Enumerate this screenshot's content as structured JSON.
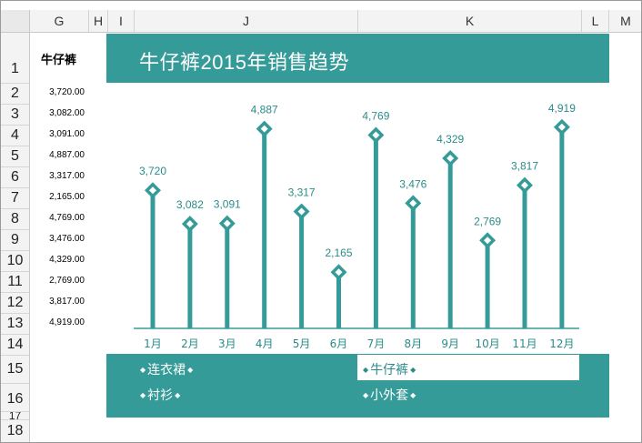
{
  "columns": [
    "G",
    "H",
    "I",
    "J",
    "K",
    "L",
    "M"
  ],
  "rows": [
    "1",
    "2",
    "3",
    "4",
    "5",
    "6",
    "7",
    "8",
    "9",
    "10",
    "11",
    "12",
    "13",
    "14",
    "15",
    "16",
    "17",
    "18"
  ],
  "g_header": "牛仔裤",
  "g_values": [
    "3,720.00",
    "3,082.00",
    "3,091.00",
    "4,887.00",
    "3,317.00",
    "2,165.00",
    "4,769.00",
    "3,476.00",
    "4,329.00",
    "2,769.00",
    "3,817.00",
    "4,919.00"
  ],
  "chart_title": "牛仔裤2015年销售趋势",
  "legend": {
    "items": [
      "连衣裙",
      "牛仔裤",
      "衬衫",
      "小外套"
    ],
    "diamond": "◆"
  },
  "colors": {
    "accent": "#359b98",
    "line": "#359b98",
    "label": "#2a8c8a"
  },
  "chart_data": {
    "type": "line",
    "title": "牛仔裤2015年销售趋势",
    "categories": [
      "1月",
      "2月",
      "3月",
      "4月",
      "5月",
      "6月",
      "7月",
      "8月",
      "9月",
      "10月",
      "11月",
      "12月"
    ],
    "values": [
      3720,
      3082,
      3091,
      4887,
      3317,
      2165,
      4769,
      3476,
      4329,
      2769,
      3817,
      4919
    ],
    "value_labels": [
      "3,720",
      "3,082",
      "3,091",
      "4,887",
      "3,317",
      "2,165",
      "4,769",
      "3,476",
      "4,329",
      "2,769",
      "3,817",
      "4,919"
    ],
    "legend": "bottom",
    "grid": false
  }
}
